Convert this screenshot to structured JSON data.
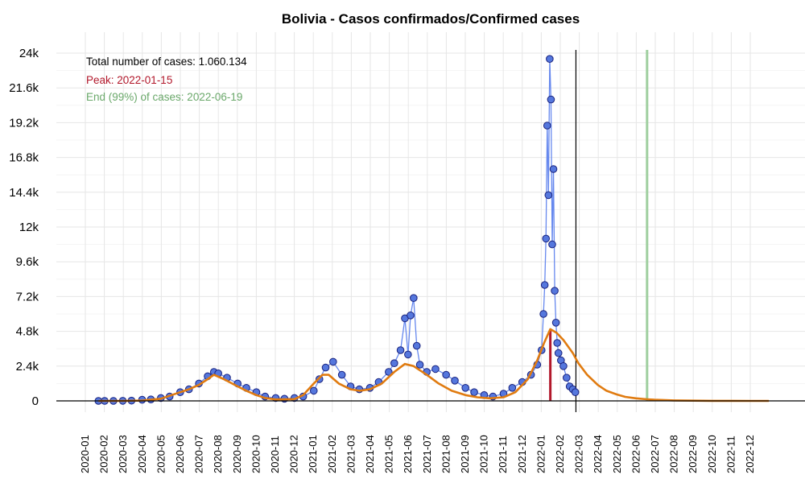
{
  "chart_data": {
    "type": "scatter",
    "title": "Bolivia - Casos confirmados/Confirmed cases",
    "xlabel": "",
    "ylabel": "",
    "ylim": [
      0,
      24000
    ],
    "y_ticks": [
      0,
      2400,
      4800,
      7200,
      9600,
      12000,
      14400,
      16800,
      19200,
      21600,
      24000
    ],
    "y_tick_labels": [
      "0",
      "2.4k",
      "4.8k",
      "7.2k",
      "9.6k",
      "12k",
      "14.4k",
      "16.8k",
      "19.2k",
      "21.6k",
      "24k"
    ],
    "x_tick_labels": [
      "2020-01",
      "2020-02",
      "2020-03",
      "2020-04",
      "2020-05",
      "2020-06",
      "2020-07",
      "2020-08",
      "2020-09",
      "2020-10",
      "2020-11",
      "2020-12",
      "2021-01",
      "2021-02",
      "2021-03",
      "2021-04",
      "2021-05",
      "2021-06",
      "2021-07",
      "2021-08",
      "2021-09",
      "2021-10",
      "2021-11",
      "2021-12",
      "2022-01",
      "2022-02",
      "2022-03",
      "2022-04",
      "2022-05",
      "2022-06",
      "2022-07",
      "2022-08",
      "2022-09",
      "2022-10",
      "2022-11",
      "2022-12"
    ],
    "annotations": [
      {
        "text": "Total number of cases: 1.060.134",
        "color": "#000000"
      },
      {
        "text": "Peak: 2022-01-15",
        "color": "#b2182b"
      },
      {
        "text": "End (99%) of cases: 2022-06-19",
        "color": "#6aa86a"
      }
    ],
    "grid": true,
    "legend": "none",
    "colors": {
      "points_fill": "#5577dd",
      "points_stroke": "#1a237e",
      "points_line": "#6688ee",
      "fit_line": "#e07b10",
      "peak_line": "#b2182b",
      "end_line": "#9fcf9f",
      "today_line": "#000000",
      "grid": "#e6e6e6"
    },
    "vertical_lines": [
      {
        "label": "peak",
        "x": "2022-01-15"
      },
      {
        "label": "today",
        "x": "2022-02-25"
      },
      {
        "label": "end",
        "x": "2022-06-19"
      }
    ],
    "series": [
      {
        "kind": "observed",
        "x": [
          "2020-01-22",
          "2020-02-01",
          "2020-02-15",
          "2020-03-01",
          "2020-03-15",
          "2020-04-01",
          "2020-04-15",
          "2020-05-01",
          "2020-05-15",
          "2020-06-01",
          "2020-06-15",
          "2020-07-01",
          "2020-07-15",
          "2020-07-25",
          "2020-08-01",
          "2020-08-15",
          "2020-09-01",
          "2020-09-15",
          "2020-10-01",
          "2020-10-15",
          "2020-11-01",
          "2020-11-15",
          "2020-12-01",
          "2020-12-15",
          "2021-01-01",
          "2021-01-10",
          "2021-01-20",
          "2021-02-01",
          "2021-02-15",
          "2021-03-01",
          "2021-03-15",
          "2021-04-01",
          "2021-04-15",
          "2021-05-01",
          "2021-05-10",
          "2021-05-20",
          "2021-05-27",
          "2021-06-01",
          "2021-06-05",
          "2021-06-10",
          "2021-06-15",
          "2021-06-20",
          "2021-07-01",
          "2021-07-15",
          "2021-08-01",
          "2021-08-15",
          "2021-09-01",
          "2021-09-15",
          "2021-10-01",
          "2021-10-15",
          "2021-11-01",
          "2021-11-15",
          "2021-12-01",
          "2021-12-15",
          "2021-12-25",
          "2022-01-01",
          "2022-01-04",
          "2022-01-06",
          "2022-01-08",
          "2022-01-10",
          "2022-01-12",
          "2022-01-14",
          "2022-01-16",
          "2022-01-18",
          "2022-01-20",
          "2022-01-22",
          "2022-01-24",
          "2022-01-26",
          "2022-01-28",
          "2022-02-01",
          "2022-02-05",
          "2022-02-10",
          "2022-02-15",
          "2022-02-20",
          "2022-02-24"
        ],
        "y": [
          0,
          0,
          0,
          5,
          20,
          80,
          100,
          200,
          300,
          600,
          800,
          1200,
          1700,
          2000,
          1900,
          1600,
          1200,
          900,
          600,
          300,
          200,
          150,
          200,
          300,
          700,
          1500,
          2300,
          2700,
          1800,
          1000,
          800,
          900,
          1300,
          2000,
          2600,
          3500,
          5700,
          3200,
          5900,
          7100,
          3800,
          2500,
          2000,
          2200,
          1800,
          1400,
          900,
          600,
          400,
          300,
          500,
          900,
          1300,
          1800,
          2500,
          3500,
          6000,
          8000,
          11200,
          19000,
          14200,
          23600,
          20800,
          10800,
          16000,
          7600,
          5400,
          4000,
          3300,
          2800,
          2400,
          1600,
          1000,
          800,
          600
        ]
      },
      {
        "kind": "fit",
        "x": [
          "2020-01-22",
          "2020-03-01",
          "2020-04-01",
          "2020-05-01",
          "2020-06-01",
          "2020-06-15",
          "2020-07-01",
          "2020-07-15",
          "2020-07-25",
          "2020-08-10",
          "2020-09-01",
          "2020-09-15",
          "2020-10-01",
          "2020-10-15",
          "2020-11-01",
          "2020-12-01",
          "2020-12-15",
          "2021-01-01",
          "2021-01-15",
          "2021-01-25",
          "2021-02-10",
          "2021-03-01",
          "2021-03-15",
          "2021-04-01",
          "2021-04-20",
          "2021-05-10",
          "2021-05-27",
          "2021-06-10",
          "2021-07-01",
          "2021-07-20",
          "2021-08-10",
          "2021-09-01",
          "2021-09-20",
          "2021-10-10",
          "2021-11-01",
          "2021-11-20",
          "2021-12-10",
          "2021-12-25",
          "2022-01-05",
          "2022-01-15",
          "2022-01-25",
          "2022-02-05",
          "2022-02-20",
          "2022-03-01",
          "2022-03-15",
          "2022-04-01",
          "2022-04-15",
          "2022-05-01",
          "2022-05-15",
          "2022-06-01",
          "2022-06-19",
          "2022-07-01",
          "2022-08-01",
          "2022-09-01",
          "2022-10-01",
          "2022-11-01",
          "2022-12-01",
          "2022-12-31"
        ],
        "y": [
          0,
          0,
          20,
          150,
          600,
          800,
          1100,
          1500,
          1800,
          1500,
          1000,
          700,
          400,
          200,
          100,
          120,
          400,
          1200,
          1800,
          1800,
          1200,
          800,
          700,
          800,
          1200,
          2000,
          2550,
          2400,
          1800,
          1200,
          700,
          400,
          250,
          180,
          250,
          600,
          1500,
          2800,
          4000,
          4950,
          4700,
          4200,
          3300,
          2600,
          1800,
          1100,
          700,
          450,
          280,
          180,
          110,
          80,
          35,
          15,
          8,
          4,
          2,
          1
        ]
      }
    ]
  }
}
